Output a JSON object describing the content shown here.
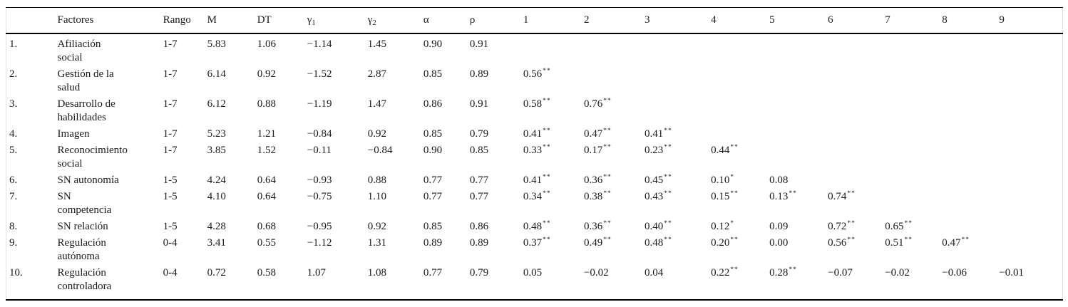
{
  "table": {
    "columns": [
      {
        "id": "num",
        "label": ""
      },
      {
        "id": "factor",
        "label": "Factores"
      },
      {
        "id": "rango",
        "label": "Rango"
      },
      {
        "id": "m",
        "label": "M"
      },
      {
        "id": "dt",
        "label": "DT"
      },
      {
        "id": "gamma1",
        "label": "γ",
        "sub": "1"
      },
      {
        "id": "gamma2",
        "label": "γ",
        "sub": "2"
      },
      {
        "id": "alpha",
        "label": "α"
      },
      {
        "id": "rho",
        "label": "ρ"
      },
      {
        "id": "corr1",
        "label": "1"
      },
      {
        "id": "corr2",
        "label": "2"
      },
      {
        "id": "corr3",
        "label": "3"
      },
      {
        "id": "corr4",
        "label": "4"
      },
      {
        "id": "corr5",
        "label": "5"
      },
      {
        "id": "corr6",
        "label": "6"
      },
      {
        "id": "corr7",
        "label": "7"
      },
      {
        "id": "corr8",
        "label": "8"
      },
      {
        "id": "corr9",
        "label": "9"
      }
    ],
    "rows": [
      {
        "num": "1.",
        "factor_lines": [
          "Afiliación",
          "social"
        ],
        "rango": "1-7",
        "m": "5.83",
        "dt": "1.06",
        "gamma1": "−1.14",
        "gamma2": "1.45",
        "alpha": "0.90",
        "rho": "0.91",
        "corr": [
          "",
          "",
          "",
          "",
          "",
          "",
          "",
          "",
          ""
        ]
      },
      {
        "num": "2.",
        "factor_lines": [
          "Gestión de la",
          "salud"
        ],
        "rango": "1-7",
        "m": "6.14",
        "dt": "0.92",
        "gamma1": "−1.52",
        "gamma2": "2.87",
        "alpha": "0.85",
        "rho": "0.89",
        "corr": [
          "0.56**",
          "",
          "",
          "",
          "",
          "",
          "",
          "",
          ""
        ]
      },
      {
        "num": "3.",
        "factor_lines": [
          "Desarrollo de",
          "habilidades"
        ],
        "rango": "1-7",
        "m": "6.12",
        "dt": "0.88",
        "gamma1": "−1.19",
        "gamma2": "1.47",
        "alpha": "0.86",
        "rho": "0.91",
        "corr": [
          "0.58**",
          "0.76**",
          "",
          "",
          "",
          "",
          "",
          "",
          ""
        ]
      },
      {
        "num": "4.",
        "factor_lines": [
          "Imagen"
        ],
        "rango": "1-7",
        "m": "5.23",
        "dt": "1.21",
        "gamma1": "−0.84",
        "gamma2": "0.92",
        "alpha": "0.85",
        "rho": "0.79",
        "corr": [
          "0.41**",
          "0.47**",
          "0.41**",
          "",
          "",
          "",
          "",
          "",
          ""
        ]
      },
      {
        "num": "5.",
        "factor_lines": [
          "Reconocimiento",
          "social"
        ],
        "rango": "1-7",
        "m": "3.85",
        "dt": "1.52",
        "gamma1": "−0.11",
        "gamma2": "−0.84",
        "alpha": "0.90",
        "rho": "0.85",
        "corr": [
          "0.33**",
          "0.17**",
          "0.23**",
          "0.44**",
          "",
          "",
          "",
          "",
          ""
        ]
      },
      {
        "num": "6.",
        "factor_lines": [
          "SN autonomía"
        ],
        "rango": "1-5",
        "m": "4.24",
        "dt": "0.64",
        "gamma1": "−0.93",
        "gamma2": "0.88",
        "alpha": "0.77",
        "rho": "0.77",
        "corr": [
          "0.41**",
          "0.36**",
          "0.45**",
          "0.10*",
          "0.08",
          "",
          "",
          "",
          ""
        ]
      },
      {
        "num": "7.",
        "factor_lines": [
          "SN",
          "competencia"
        ],
        "rango": "1-5",
        "m": "4.10",
        "dt": "0.64",
        "gamma1": "−0.75",
        "gamma2": "1.10",
        "alpha": "0.77",
        "rho": "0.77",
        "corr": [
          "0.34**",
          "0.38**",
          "0.43**",
          "0.15**",
          "0.13**",
          "0.74**",
          "",
          "",
          ""
        ]
      },
      {
        "num": "8.",
        "factor_lines": [
          "SN relación"
        ],
        "rango": "1-5",
        "m": "4.28",
        "dt": "0.68",
        "gamma1": "−0.95",
        "gamma2": "0.92",
        "alpha": "0.85",
        "rho": "0.86",
        "corr": [
          "0.48**",
          "0.36**",
          "0.40**",
          "0.12*",
          "0.09",
          "0.72**",
          "0.65**",
          "",
          ""
        ]
      },
      {
        "num": "9.",
        "factor_lines": [
          "Regulación",
          "autónoma"
        ],
        "rango": "0-4",
        "m": "3.41",
        "dt": "0.55",
        "gamma1": "−1.12",
        "gamma2": "1.31",
        "alpha": "0.89",
        "rho": "0.89",
        "corr": [
          "0.37**",
          "0.49**",
          "0.48**",
          "0.20**",
          "0.00",
          "0.56**",
          "0.51**",
          "0.47**",
          ""
        ]
      },
      {
        "num": "10.",
        "factor_lines": [
          "Regulación",
          "controladora"
        ],
        "rango": "0-4",
        "m": "0.72",
        "dt": "0.58",
        "gamma1": "1.07",
        "gamma2": "1.08",
        "alpha": "0.77",
        "rho": "0.79",
        "corr": [
          "0.05",
          "−0.02",
          "0.04",
          "0.22**",
          "0.28**",
          "−0.07",
          "−0.02",
          "−0.06",
          "−0.01"
        ]
      }
    ]
  }
}
